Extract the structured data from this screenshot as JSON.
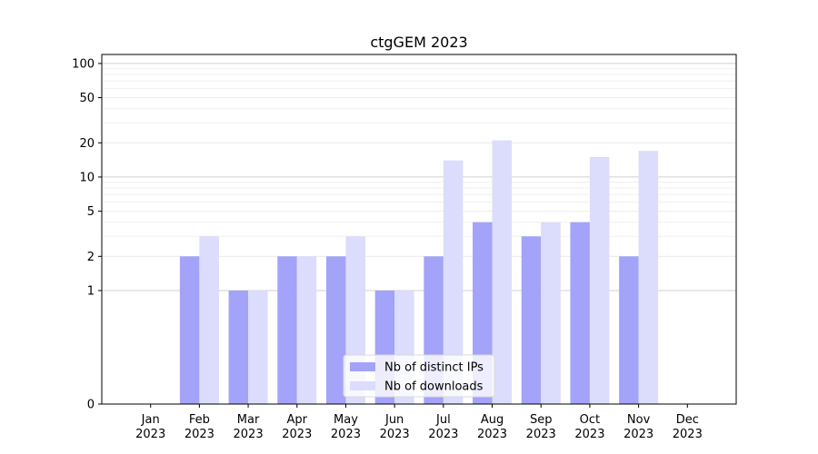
{
  "chart_data": {
    "type": "bar",
    "title": "ctgGEM 2023",
    "xlabel": "",
    "ylabel": "",
    "y_scale": "symlog",
    "ylim": [
      0,
      120
    ],
    "y_ticks": [
      0,
      1,
      2,
      5,
      10,
      20,
      50,
      100
    ],
    "categories": [
      [
        "Jan",
        "2023"
      ],
      [
        "Feb",
        "2023"
      ],
      [
        "Mar",
        "2023"
      ],
      [
        "Apr",
        "2023"
      ],
      [
        "May",
        "2023"
      ],
      [
        "Jun",
        "2023"
      ],
      [
        "Jul",
        "2023"
      ],
      [
        "Aug",
        "2023"
      ],
      [
        "Sep",
        "2023"
      ],
      [
        "Oct",
        "2023"
      ],
      [
        "Nov",
        "2023"
      ],
      [
        "Dec",
        "2023"
      ]
    ],
    "series": [
      {
        "name": "Nb of distinct IPs",
        "color": "#a3a3f9",
        "values": [
          0,
          2,
          1,
          2,
          2,
          1,
          2,
          4,
          3,
          4,
          2,
          0
        ]
      },
      {
        "name": "Nb of downloads",
        "color": "#dcdcfc",
        "values": [
          0,
          3,
          1,
          2,
          3,
          1,
          14,
          21,
          4,
          15,
          17,
          0
        ]
      }
    ],
    "grid": true,
    "legend_position": "lower-center"
  }
}
